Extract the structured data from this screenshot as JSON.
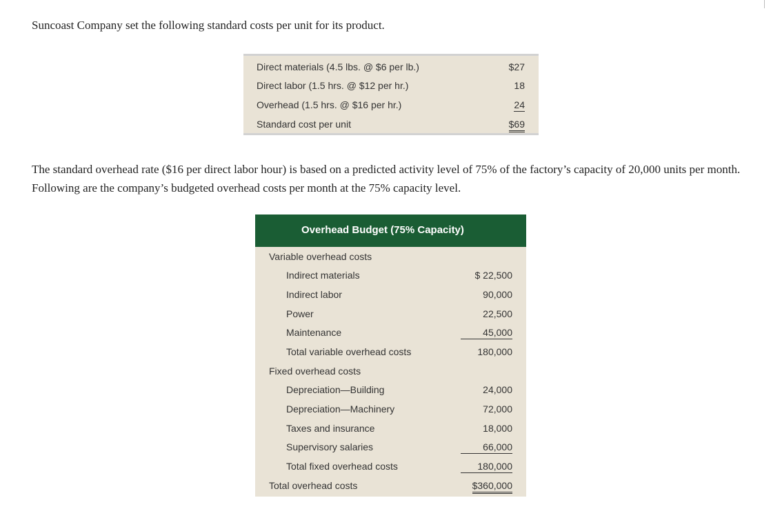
{
  "intro": "Suncoast Company set the following standard costs per unit for its product.",
  "standard_costs": {
    "rows": [
      {
        "label": "Direct materials (4.5 lbs. @ $6 per lb.)",
        "value": "$27"
      },
      {
        "label": "Direct labor (1.5 hrs. @ $12 per hr.)",
        "value": "18"
      },
      {
        "label": "Overhead (1.5 hrs. @ $16 per hr.)",
        "value": "24"
      },
      {
        "label": "Standard cost per unit",
        "value": "$69"
      }
    ]
  },
  "paragraph": "The standard overhead rate ($16 per direct labor hour) is based on a predicted activity level of 75% of the factory’s capacity of 20,000 units per month. Following are the company’s budgeted overhead costs per month at the 75% capacity level.",
  "overhead_budget": {
    "title": "Overhead Budget (75% Capacity)",
    "rows": [
      {
        "label": "Variable overhead costs",
        "value": ""
      },
      {
        "label": "Indirect materials",
        "value": "$ 22,500"
      },
      {
        "label": "Indirect labor",
        "value": "90,000"
      },
      {
        "label": "Power",
        "value": "22,500"
      },
      {
        "label": "Maintenance",
        "value": "45,000"
      },
      {
        "label": "Total variable overhead costs",
        "value": "180,000"
      },
      {
        "label": "Fixed overhead costs",
        "value": ""
      },
      {
        "label": "Depreciation—Building",
        "value": "24,000"
      },
      {
        "label": "Depreciation—Machinery",
        "value": "72,000"
      },
      {
        "label": "Taxes and insurance",
        "value": "18,000"
      },
      {
        "label": "Supervisory salaries",
        "value": "66,000"
      },
      {
        "label": "Total fixed overhead costs",
        "value": "180,000"
      },
      {
        "label": "Total overhead costs",
        "value": "$360,000"
      }
    ]
  }
}
